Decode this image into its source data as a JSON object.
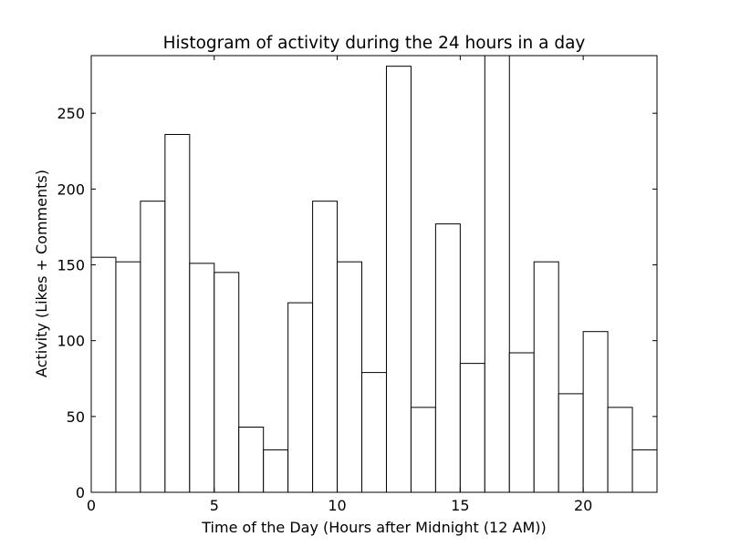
{
  "chart_data": {
    "type": "bar",
    "title": "Histogram of activity during the 24 hours in a day",
    "xlabel": "Time of the Day (Hours after Midnight (12 AM))",
    "ylabel": "Activity (Likes + Comments)",
    "bin_edges": [
      0,
      1,
      2,
      3,
      4,
      5,
      6,
      7,
      8,
      9,
      10,
      11,
      12,
      13,
      14,
      15,
      16,
      17,
      18,
      19,
      20,
      21,
      22,
      23
    ],
    "values": [
      155,
      152,
      192,
      236,
      151,
      145,
      43,
      28,
      125,
      192,
      152,
      79,
      281,
      56,
      177,
      85,
      288,
      92,
      152,
      65,
      106,
      56,
      28
    ],
    "xlim": [
      0,
      23
    ],
    "ylim": [
      0,
      288
    ],
    "xticks": [
      0,
      5,
      10,
      15,
      20
    ],
    "yticks": [
      0,
      50,
      100,
      150,
      200,
      250
    ],
    "bar_fill": "#ffffff",
    "bar_edge": "#000000",
    "grid": false,
    "legend": "none"
  }
}
